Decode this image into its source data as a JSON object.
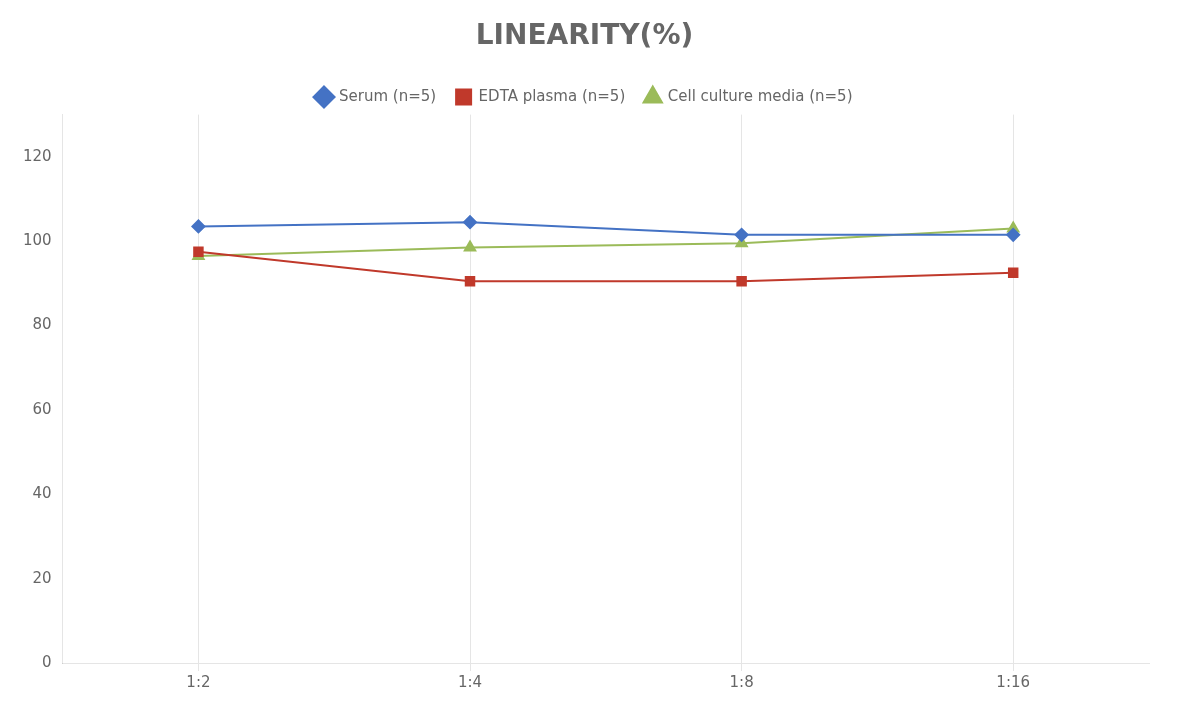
{
  "chart_data": {
    "type": "line",
    "title": "LINEARITY(%)",
    "categories": [
      "1:2",
      "1:4",
      "1:8",
      "1:16"
    ],
    "series": [
      {
        "name": "Serum (n=5)",
        "color": "#4472C4",
        "marker": "diamond",
        "values": [
          103.5,
          104.5,
          101.5,
          101.5
        ]
      },
      {
        "name": "EDTA plasma (n=5)",
        "color": "#C0392B",
        "marker": "square",
        "values": [
          97.5,
          90.5,
          90.5,
          92.5
        ]
      },
      {
        "name": "Cell culture media (n=5)",
        "color": "#9BBB59",
        "marker": "triangle",
        "values": [
          96.5,
          98.5,
          99.5,
          103.0
        ]
      }
    ],
    "ylim": [
      0,
      130
    ],
    "yticks": [
      0,
      20,
      40,
      60,
      80,
      100,
      120
    ],
    "grid": "x",
    "legend": "top"
  }
}
